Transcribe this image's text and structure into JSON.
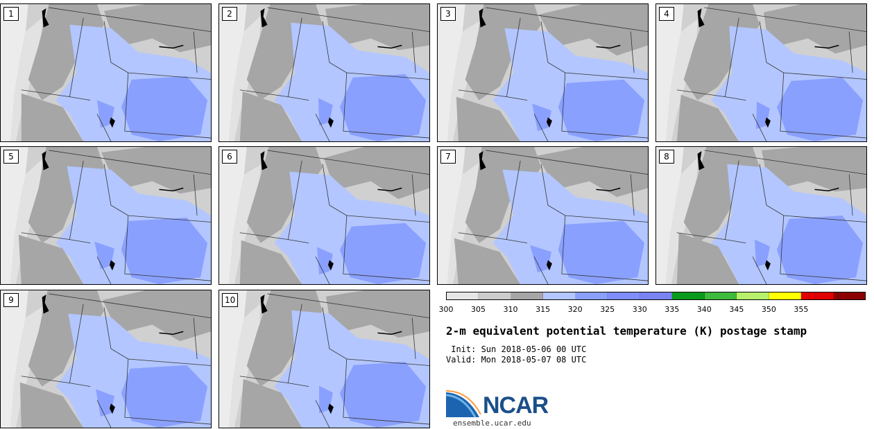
{
  "panels": [
    {
      "label": "1"
    },
    {
      "label": "2"
    },
    {
      "label": "3"
    },
    {
      "label": "4"
    },
    {
      "label": "5"
    },
    {
      "label": "6"
    },
    {
      "label": "7"
    },
    {
      "label": "8"
    },
    {
      "label": "9"
    },
    {
      "label": "10"
    }
  ],
  "colorbar": {
    "colors": [
      "#e6e6e6",
      "#cccccc",
      "#a6a6a6",
      "#b3c6ff",
      "#8aa0ff",
      "#7f8dff",
      "#7b83f2",
      "#0c9a1c",
      "#3dbb3d",
      "#b7f06a",
      "#ffff00",
      "#e00000",
      "#8b0000"
    ],
    "ticks": [
      "300",
      "305",
      "310",
      "315",
      "320",
      "325",
      "330",
      "335",
      "340",
      "345",
      "350",
      "355"
    ]
  },
  "title": "2-m equivalent potential temperature (K) postage stamp",
  "init_line": " Init: Sun 2018-05-06 00 UTC",
  "valid_line": "Valid: Mon 2018-05-07 08 UTC",
  "logo": {
    "name": "NCAR",
    "url": "ensemble.ucar.edu"
  }
}
